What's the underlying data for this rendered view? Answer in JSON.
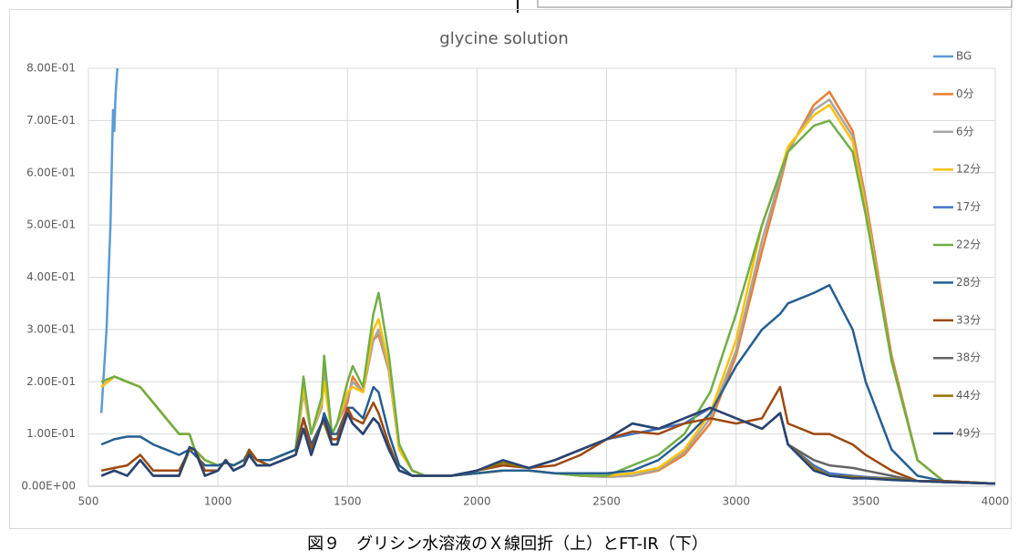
{
  "chart_data": {
    "type": "line",
    "title": "glycine solution",
    "caption": "図９　グリシン水溶液のＸ線回折（上）とFT-IR（下）",
    "xlim": [
      500,
      4000
    ],
    "xticks": [
      500,
      1000,
      1500,
      2000,
      2500,
      3000,
      3500,
      4000
    ],
    "ylim": [
      0,
      0.8
    ],
    "yticks": [
      {
        "value": 0,
        "label": "0.00E+00"
      },
      {
        "value": 0.1,
        "label": "1.00E-01"
      },
      {
        "value": 0.2,
        "label": "2.00E-01"
      },
      {
        "value": 0.3,
        "label": "3.00E-01"
      },
      {
        "value": 0.4,
        "label": "4.00E-01"
      },
      {
        "value": 0.5,
        "label": "5.00E-01"
      },
      {
        "value": 0.6,
        "label": "6.00E-01"
      },
      {
        "value": 0.7,
        "label": "7.00E-01"
      },
      {
        "value": 0.8,
        "label": "8.00E-01"
      }
    ],
    "grid": true,
    "legend": "right",
    "x": [
      550,
      600,
      650,
      700,
      750,
      800,
      850,
      890,
      910,
      950,
      1000,
      1030,
      1060,
      1100,
      1120,
      1150,
      1200,
      1300,
      1330,
      1360,
      1400,
      1410,
      1440,
      1460,
      1500,
      1520,
      1560,
      1600,
      1620,
      1660,
      1700,
      1750,
      1800,
      1900,
      2000,
      2100,
      2200,
      2300,
      2400,
      2500,
      2600,
      2700,
      2800,
      2900,
      3000,
      3100,
      3170,
      3200,
      3300,
      3360,
      3450,
      3500,
      3600,
      3700,
      3800,
      4000
    ],
    "series": [
      {
        "name": "BG",
        "color": "#5b9bd5",
        "x": [
          550,
          570,
          585,
          595,
          600,
          605,
          612
        ],
        "values": [
          0.14,
          0.3,
          0.5,
          0.72,
          0.68,
          0.75,
          0.8
        ]
      },
      {
        "name": "0分",
        "color": "#ed7d31",
        "values": [
          0.19,
          0.21,
          0.2,
          0.19,
          0.16,
          0.13,
          0.1,
          0.1,
          0.07,
          0.05,
          0.04,
          0.045,
          0.04,
          0.05,
          0.065,
          0.05,
          0.05,
          0.07,
          0.18,
          0.1,
          0.15,
          0.22,
          0.1,
          0.12,
          0.16,
          0.21,
          0.18,
          0.28,
          0.29,
          0.22,
          0.07,
          0.03,
          0.02,
          0.02,
          0.025,
          0.03,
          0.03,
          0.025,
          0.02,
          0.018,
          0.02,
          0.03,
          0.06,
          0.12,
          0.25,
          0.45,
          0.58,
          0.64,
          0.73,
          0.755,
          0.68,
          0.55,
          0.25,
          0.05,
          0.01,
          0.005
        ]
      },
      {
        "name": "6分",
        "color": "#a5a5a5",
        "values": [
          0.19,
          0.21,
          0.2,
          0.19,
          0.16,
          0.13,
          0.1,
          0.1,
          0.07,
          0.05,
          0.04,
          0.045,
          0.04,
          0.05,
          0.065,
          0.05,
          0.05,
          0.07,
          0.18,
          0.1,
          0.15,
          0.21,
          0.1,
          0.12,
          0.17,
          0.2,
          0.18,
          0.28,
          0.3,
          0.22,
          0.07,
          0.03,
          0.02,
          0.02,
          0.025,
          0.03,
          0.03,
          0.025,
          0.02,
          0.018,
          0.02,
          0.032,
          0.065,
          0.13,
          0.26,
          0.47,
          0.59,
          0.645,
          0.72,
          0.74,
          0.67,
          0.54,
          0.24,
          0.05,
          0.01,
          0.005
        ]
      },
      {
        "name": "12分",
        "color": "#ffc000",
        "values": [
          0.19,
          0.21,
          0.2,
          0.19,
          0.16,
          0.13,
          0.1,
          0.1,
          0.07,
          0.05,
          0.04,
          0.045,
          0.04,
          0.05,
          0.065,
          0.05,
          0.05,
          0.07,
          0.19,
          0.1,
          0.16,
          0.2,
          0.1,
          0.12,
          0.18,
          0.19,
          0.18,
          0.3,
          0.32,
          0.23,
          0.07,
          0.03,
          0.02,
          0.02,
          0.025,
          0.03,
          0.03,
          0.025,
          0.02,
          0.02,
          0.025,
          0.035,
          0.07,
          0.14,
          0.28,
          0.5,
          0.6,
          0.65,
          0.71,
          0.73,
          0.66,
          0.53,
          0.24,
          0.05,
          0.01,
          0.005
        ]
      },
      {
        "name": "17分",
        "color": "#4472c4",
        "values": [
          0.02,
          0.03,
          0.02,
          0.05,
          0.02,
          0.02,
          0.02,
          0.07,
          0.07,
          0.02,
          0.03,
          0.05,
          0.03,
          0.04,
          0.06,
          0.04,
          0.04,
          0.06,
          0.11,
          0.06,
          0.12,
          0.12,
          0.08,
          0.08,
          0.14,
          0.12,
          0.1,
          0.13,
          0.12,
          0.07,
          0.03,
          0.02,
          0.02,
          0.02,
          0.03,
          0.045,
          0.035,
          0.05,
          0.07,
          0.09,
          0.1,
          0.11,
          0.12,
          0.15,
          0.13,
          0.11,
          0.14,
          0.08,
          0.04,
          0.025,
          0.02,
          0.018,
          0.015,
          0.01,
          0.008,
          0.005
        ]
      },
      {
        "name": "22分",
        "color": "#70ad47",
        "values": [
          0.2,
          0.21,
          0.2,
          0.19,
          0.16,
          0.13,
          0.1,
          0.1,
          0.07,
          0.05,
          0.04,
          0.045,
          0.04,
          0.05,
          0.07,
          0.05,
          0.05,
          0.07,
          0.21,
          0.1,
          0.17,
          0.25,
          0.1,
          0.12,
          0.2,
          0.23,
          0.19,
          0.33,
          0.37,
          0.25,
          0.08,
          0.03,
          0.02,
          0.02,
          0.025,
          0.03,
          0.03,
          0.025,
          0.02,
          0.02,
          0.04,
          0.06,
          0.1,
          0.18,
          0.33,
          0.5,
          0.6,
          0.64,
          0.69,
          0.7,
          0.64,
          0.52,
          0.24,
          0.05,
          0.01,
          0.005
        ]
      },
      {
        "name": "28分",
        "color": "#255e91",
        "values": [
          0.08,
          0.09,
          0.095,
          0.095,
          0.08,
          0.07,
          0.06,
          0.07,
          0.06,
          0.04,
          0.04,
          0.045,
          0.04,
          0.05,
          0.065,
          0.05,
          0.05,
          0.07,
          0.13,
          0.08,
          0.12,
          0.14,
          0.1,
          0.1,
          0.15,
          0.15,
          0.13,
          0.19,
          0.18,
          0.1,
          0.04,
          0.02,
          0.02,
          0.02,
          0.025,
          0.03,
          0.03,
          0.025,
          0.025,
          0.025,
          0.03,
          0.05,
          0.09,
          0.14,
          0.23,
          0.3,
          0.33,
          0.35,
          0.37,
          0.385,
          0.3,
          0.2,
          0.07,
          0.02,
          0.01,
          0.005
        ]
      },
      {
        "name": "33分",
        "color": "#9e480e",
        "values": [
          0.03,
          0.035,
          0.04,
          0.06,
          0.03,
          0.03,
          0.03,
          0.07,
          0.07,
          0.03,
          0.03,
          0.05,
          0.03,
          0.04,
          0.07,
          0.05,
          0.04,
          0.06,
          0.13,
          0.07,
          0.12,
          0.13,
          0.09,
          0.09,
          0.15,
          0.13,
          0.12,
          0.16,
          0.14,
          0.08,
          0.03,
          0.02,
          0.02,
          0.02,
          0.03,
          0.04,
          0.035,
          0.04,
          0.06,
          0.09,
          0.105,
          0.1,
          0.12,
          0.13,
          0.12,
          0.13,
          0.19,
          0.12,
          0.1,
          0.1,
          0.08,
          0.06,
          0.03,
          0.01,
          0.01,
          0.005
        ]
      },
      {
        "name": "38分",
        "color": "#636363",
        "values": [
          0.02,
          0.03,
          0.02,
          0.05,
          0.02,
          0.02,
          0.02,
          0.07,
          0.07,
          0.02,
          0.03,
          0.05,
          0.03,
          0.04,
          0.06,
          0.04,
          0.04,
          0.06,
          0.11,
          0.06,
          0.12,
          0.12,
          0.08,
          0.08,
          0.14,
          0.12,
          0.1,
          0.13,
          0.12,
          0.07,
          0.03,
          0.02,
          0.02,
          0.02,
          0.03,
          0.045,
          0.035,
          0.05,
          0.07,
          0.09,
          0.12,
          0.11,
          0.13,
          0.15,
          0.13,
          0.11,
          0.14,
          0.08,
          0.05,
          0.04,
          0.035,
          0.03,
          0.02,
          0.01,
          0.008,
          0.005
        ]
      },
      {
        "name": "44分",
        "color": "#997300",
        "values": [
          0.02,
          0.03,
          0.02,
          0.05,
          0.02,
          0.02,
          0.02,
          0.07,
          0.07,
          0.02,
          0.03,
          0.05,
          0.03,
          0.04,
          0.06,
          0.04,
          0.04,
          0.06,
          0.11,
          0.06,
          0.12,
          0.12,
          0.08,
          0.08,
          0.14,
          0.12,
          0.1,
          0.13,
          0.12,
          0.07,
          0.03,
          0.02,
          0.02,
          0.02,
          0.03,
          0.045,
          0.035,
          0.05,
          0.07,
          0.09,
          0.12,
          0.11,
          0.13,
          0.15,
          0.13,
          0.11,
          0.14,
          0.08,
          0.035,
          0.02,
          0.018,
          0.016,
          0.014,
          0.01,
          0.008,
          0.005
        ]
      },
      {
        "name": "49分",
        "color": "#264478",
        "values": [
          0.02,
          0.03,
          0.02,
          0.05,
          0.02,
          0.02,
          0.02,
          0.075,
          0.07,
          0.02,
          0.03,
          0.05,
          0.03,
          0.04,
          0.06,
          0.04,
          0.04,
          0.06,
          0.11,
          0.06,
          0.12,
          0.13,
          0.08,
          0.08,
          0.14,
          0.12,
          0.1,
          0.13,
          0.12,
          0.07,
          0.03,
          0.02,
          0.02,
          0.02,
          0.03,
          0.05,
          0.035,
          0.05,
          0.07,
          0.09,
          0.12,
          0.11,
          0.13,
          0.15,
          0.13,
          0.11,
          0.14,
          0.08,
          0.03,
          0.02,
          0.015,
          0.015,
          0.012,
          0.01,
          0.008,
          0.005
        ]
      }
    ]
  }
}
